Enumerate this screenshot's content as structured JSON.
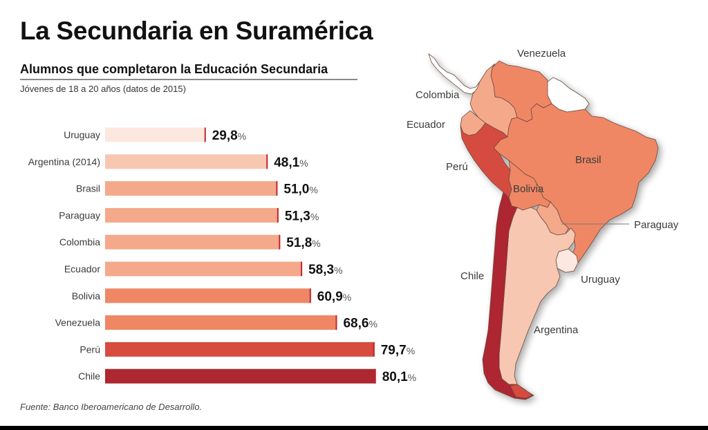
{
  "header": {
    "title": "La Secundaria en Suramérica",
    "subtitle": "Alumnos que completaron la Educación Secundaria",
    "note": "Jóvenes de 18 a 20 años (datos de 2015)"
  },
  "footer": {
    "source": "Fuente: Banco Iberoamericano de Desarrollo."
  },
  "chart_data": [
    {
      "type": "bar",
      "orientation": "horizontal",
      "title": "Alumnos que completaron la Educación Secundaria",
      "subtitle": "Jóvenes de 18 a 20 años (datos de 2015)",
      "categories": [
        "Uruguay",
        "Argentina (2014)",
        "Brasil",
        "Paraguay",
        "Colombia",
        "Ecuador",
        "Bolivia",
        "Venezuela",
        "Perú",
        "Chile"
      ],
      "values": [
        29.8,
        48.1,
        51.0,
        51.3,
        51.8,
        58.3,
        60.9,
        68.6,
        79.7,
        80.1
      ],
      "value_labels": [
        "29,8",
        "48,1",
        "51,0",
        "51,3",
        "51,8",
        "58,3",
        "60,9",
        "68,6",
        "79,7",
        "80,1"
      ],
      "unit": "%",
      "colors": [
        "#fce8df",
        "#f8c7b2",
        "#f4a98a",
        "#f4a98a",
        "#f4a98a",
        "#f4a98a",
        "#ef8765",
        "#ef8765",
        "#d64c3f",
        "#ad2830"
      ],
      "end_marker_color": "#c0272d",
      "xlabel": "",
      "ylabel": "",
      "xlim": [
        0,
        100
      ],
      "grid": false,
      "legend": "none"
    },
    {
      "type": "map",
      "title": "Suramérica",
      "regions": [
        {
          "name": "Venezuela",
          "value": 68.6,
          "color": "#ef8765"
        },
        {
          "name": "Colombia",
          "value": 51.8,
          "color": "#f4a98a"
        },
        {
          "name": "Ecuador",
          "value": 58.3,
          "color": "#f4a98a"
        },
        {
          "name": "Perú",
          "value": 79.7,
          "color": "#d64c3f"
        },
        {
          "name": "Brasil",
          "value": 51.0,
          "color": "#ef8765"
        },
        {
          "name": "Bolivia",
          "value": 60.9,
          "color": "#ef8765"
        },
        {
          "name": "Paraguay",
          "value": 51.3,
          "color": "#f4a98a"
        },
        {
          "name": "Chile",
          "value": 80.1,
          "color": "#ad2830"
        },
        {
          "name": "Uruguay",
          "value": 29.8,
          "color": "#fce8df"
        },
        {
          "name": "Argentina",
          "value": 48.1,
          "color": "#f8c7b2"
        }
      ],
      "no_data_color": "#ffffff"
    }
  ],
  "map_labels": {
    "venezuela": "Venezuela",
    "colombia": "Colombia",
    "ecuador": "Ecuador",
    "peru": "Perú",
    "brasil": "Brasil",
    "bolivia": "Bolivia",
    "paraguay": "Paraguay",
    "chile": "Chile",
    "uruguay": "Uruguay",
    "argentina": "Argentina"
  }
}
